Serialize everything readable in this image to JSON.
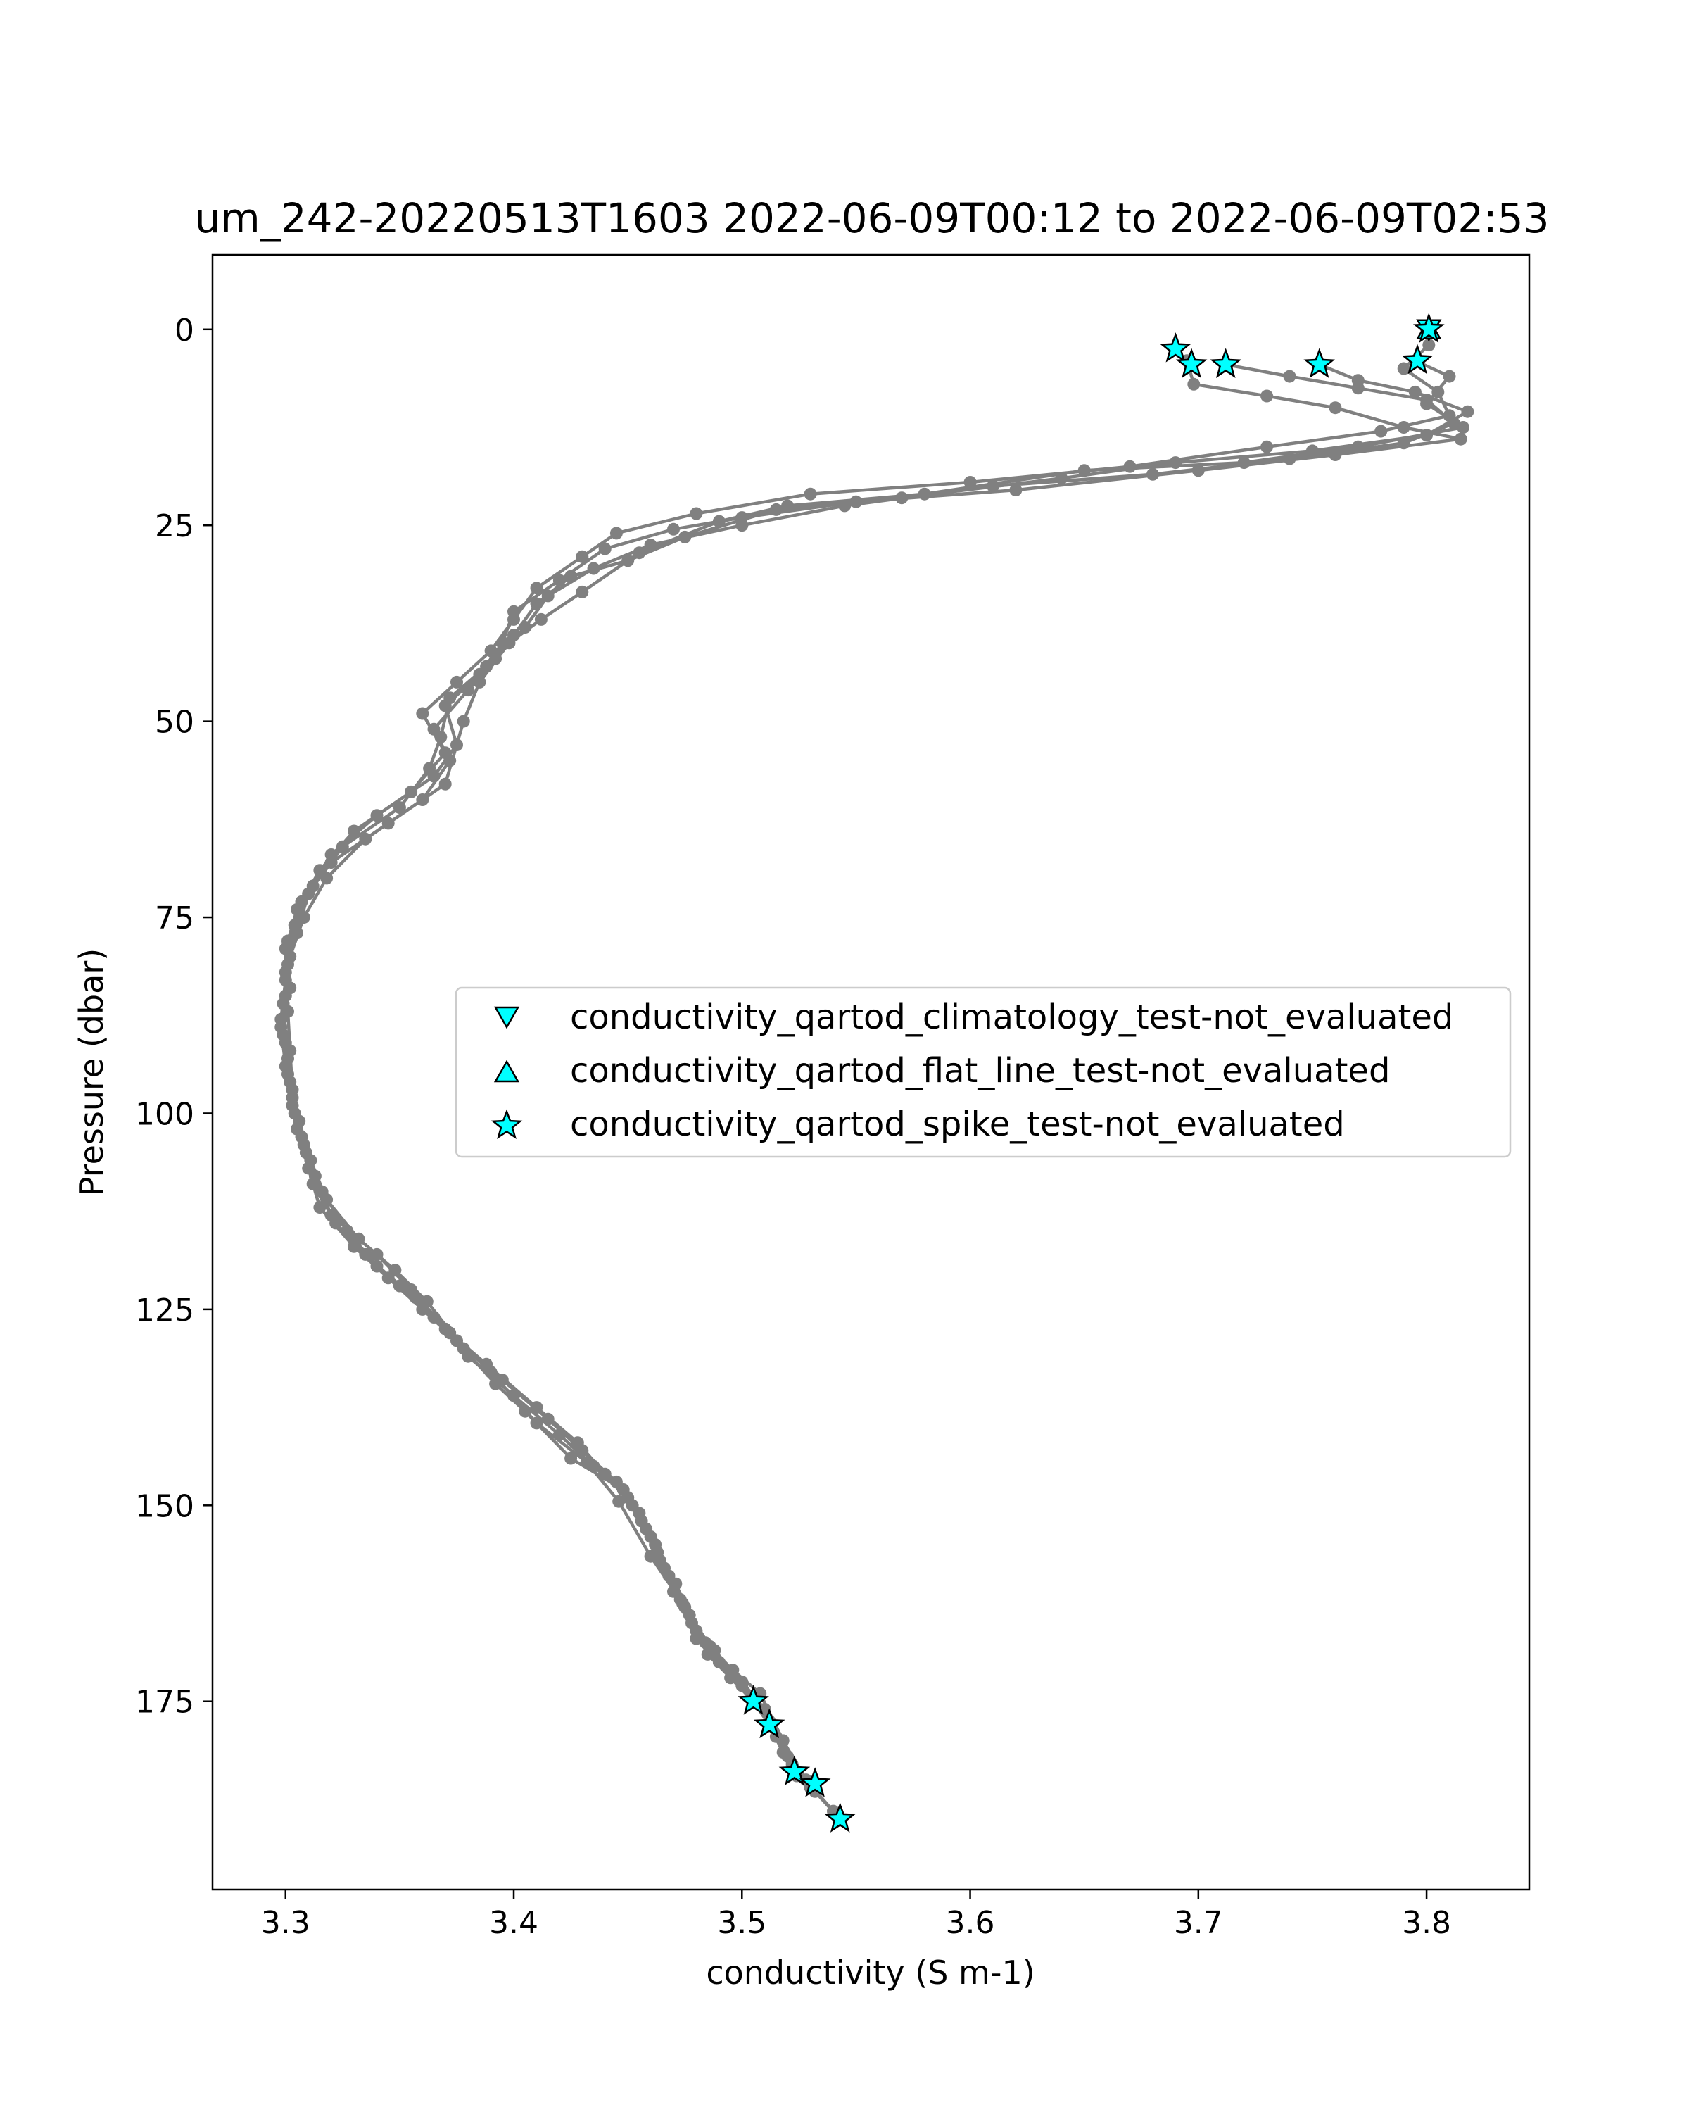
{
  "chart_data": {
    "type": "line",
    "title": "um_242-20220513T1603 2022-06-09T00:12 to 2022-06-09T02:53",
    "xlabel": "conductivity (S m-1)",
    "ylabel": "Pressure (dbar)",
    "xlim": [
      3.268,
      3.845
    ],
    "ylim": [
      199,
      -9.5
    ],
    "y_inverted": true,
    "grid": false,
    "x_ticks": [
      3.3,
      3.4,
      3.5,
      3.6,
      3.7,
      3.8
    ],
    "x_tick_labels": [
      "3.3",
      "3.4",
      "3.5",
      "3.6",
      "3.7",
      "3.8"
    ],
    "y_ticks": [
      0,
      25,
      50,
      75,
      100,
      125,
      150,
      175
    ],
    "y_tick_labels": [
      "0",
      "25",
      "50",
      "75",
      "100",
      "125",
      "150",
      "175"
    ],
    "colors": {
      "profile_line": "#808080",
      "profile_marker": "#808080",
      "flag_fill": "#00ffff",
      "flag_edge": "#000000",
      "axes": "#000000",
      "legend_border": "#cccccc"
    },
    "legend": {
      "placement": "center-right",
      "entries": [
        {
          "marker": "triangle-down",
          "label": "conductivity_qartod_climatology_test-not_evaluated"
        },
        {
          "marker": "triangle-up",
          "label": "conductivity_qartod_flat_line_test-not_evaluated"
        },
        {
          "marker": "star",
          "label": "conductivity_qartod_spike_test-not_evaluated"
        }
      ]
    },
    "series": [
      {
        "values": [
          [
            3.69,
            2.5
          ],
          [
            3.695,
            4.0
          ],
          [
            3.698,
            7.0
          ],
          [
            3.73,
            8.5
          ],
          [
            3.76,
            10.0
          ],
          [
            3.79,
            12.5
          ],
          [
            3.815,
            14.0
          ],
          [
            3.76,
            16.0
          ],
          [
            3.7,
            18.0
          ],
          [
            3.62,
            20.5
          ],
          [
            3.55,
            22.0
          ],
          [
            3.5,
            24.0
          ],
          [
            3.47,
            25.5
          ],
          [
            3.44,
            28.0
          ],
          [
            3.42,
            32.0
          ],
          [
            3.4,
            36.0
          ],
          [
            3.395,
            40.0
          ],
          [
            3.385,
            44.0
          ],
          [
            3.37,
            48.0
          ],
          [
            3.375,
            53.0
          ],
          [
            3.365,
            57.0
          ],
          [
            3.34,
            62.0
          ],
          [
            3.32,
            67.0
          ],
          [
            3.31,
            72.0
          ],
          [
            3.305,
            77.0
          ],
          [
            3.3,
            82.0
          ],
          [
            3.301,
            87.0
          ],
          [
            3.302,
            92.0
          ],
          [
            3.303,
            97.0
          ],
          [
            3.305,
            102.0
          ],
          [
            3.31,
            107.0
          ],
          [
            3.315,
            112.0
          ],
          [
            3.33,
            117.0
          ],
          [
            3.345,
            121.0
          ],
          [
            3.36,
            125.0
          ],
          [
            3.375,
            129.0
          ],
          [
            3.395,
            134.0
          ],
          [
            3.415,
            139.0
          ],
          [
            3.43,
            143.0
          ],
          [
            3.445,
            147.0
          ],
          [
            3.455,
            151.0
          ],
          [
            3.462,
            155.0
          ],
          [
            3.468,
            159.0
          ],
          [
            3.475,
            163.0
          ],
          [
            3.48,
            167.0
          ],
          [
            3.49,
            170.0
          ],
          [
            3.505,
            175.0
          ],
          [
            3.512,
            178.0
          ],
          [
            3.518,
            181.5
          ],
          [
            3.523,
            184.0
          ],
          [
            3.532,
            186.5
          ],
          [
            3.543,
            190.0
          ]
        ]
      },
      {
        "values": [
          [
            3.8,
            0.0
          ],
          [
            3.801,
            2.0
          ],
          [
            3.79,
            5.0
          ],
          [
            3.805,
            8.0
          ],
          [
            3.81,
            11.0
          ],
          [
            3.78,
            13.0
          ],
          [
            3.73,
            15.0
          ],
          [
            3.67,
            17.5
          ],
          [
            3.6,
            19.5
          ],
          [
            3.53,
            21.0
          ],
          [
            3.48,
            23.5
          ],
          [
            3.445,
            26.0
          ],
          [
            3.43,
            29.0
          ],
          [
            3.41,
            33.0
          ],
          [
            3.4,
            37.0
          ],
          [
            3.39,
            41.0
          ],
          [
            3.375,
            45.0
          ],
          [
            3.36,
            49.0
          ],
          [
            3.37,
            54.0
          ],
          [
            3.355,
            59.0
          ],
          [
            3.33,
            64.0
          ],
          [
            3.315,
            69.0
          ],
          [
            3.305,
            74.0
          ],
          [
            3.3,
            79.0
          ],
          [
            3.302,
            84.0
          ],
          [
            3.298,
            89.0
          ],
          [
            3.3,
            94.0
          ],
          [
            3.303,
            99.0
          ],
          [
            3.308,
            104.0
          ],
          [
            3.312,
            109.0
          ],
          [
            3.322,
            114.0
          ],
          [
            3.335,
            118.0
          ],
          [
            3.35,
            122.0
          ],
          [
            3.365,
            126.0
          ],
          [
            3.38,
            131.0
          ],
          [
            3.4,
            136.0
          ],
          [
            3.42,
            141.0
          ],
          [
            3.435,
            145.0
          ],
          [
            3.45,
            149.0
          ],
          [
            3.458,
            153.0
          ],
          [
            3.464,
            157.0
          ],
          [
            3.47,
            161.0
          ],
          [
            3.478,
            165.0
          ],
          [
            3.485,
            169.0
          ],
          [
            3.495,
            172.0
          ],
          [
            3.505,
            175.0
          ],
          [
            3.512,
            178.0
          ],
          [
            3.52,
            182.0
          ],
          [
            3.524,
            184.0
          ],
          [
            3.53,
            186.0
          ]
        ]
      },
      {
        "values": [
          [
            3.712,
            4.5
          ],
          [
            3.74,
            6.0
          ],
          [
            3.77,
            7.5
          ],
          [
            3.8,
            9.0
          ],
          [
            3.812,
            12.0
          ],
          [
            3.79,
            14.5
          ],
          [
            3.74,
            16.5
          ],
          [
            3.68,
            18.5
          ],
          [
            3.61,
            20.0
          ],
          [
            3.545,
            22.5
          ],
          [
            3.5,
            25.0
          ],
          [
            3.46,
            27.5
          ],
          [
            3.435,
            30.5
          ],
          [
            3.415,
            34.0
          ],
          [
            3.405,
            38.0
          ],
          [
            3.392,
            42.0
          ],
          [
            3.38,
            46.0
          ],
          [
            3.365,
            51.0
          ],
          [
            3.372,
            55.0
          ],
          [
            3.36,
            60.0
          ],
          [
            3.335,
            65.0
          ],
          [
            3.318,
            70.0
          ],
          [
            3.308,
            75.0
          ],
          [
            3.302,
            80.0
          ],
          [
            3.3,
            85.0
          ],
          [
            3.299,
            90.0
          ],
          [
            3.301,
            95.0
          ],
          [
            3.304,
            100.0
          ],
          [
            3.309,
            105.0
          ],
          [
            3.316,
            110.0
          ],
          [
            3.327,
            115.0
          ],
          [
            3.34,
            119.5
          ],
          [
            3.357,
            123.5
          ],
          [
            3.37,
            127.5
          ],
          [
            3.388,
            132.0
          ],
          [
            3.41,
            137.5
          ],
          [
            3.428,
            142.0
          ],
          [
            3.44,
            146.0
          ],
          [
            3.452,
            150.0
          ],
          [
            3.46,
            154.0
          ],
          [
            3.466,
            158.0
          ],
          [
            3.473,
            162.0
          ],
          [
            3.48,
            166.0
          ],
          [
            3.488,
            168.5
          ],
          [
            3.5,
            172.5
          ],
          [
            3.51,
            176.0
          ],
          [
            3.515,
            179.5
          ],
          [
            3.522,
            183.0
          ]
        ]
      },
      {
        "values": [
          [
            3.753,
            4.5
          ],
          [
            3.77,
            6.5
          ],
          [
            3.795,
            8.0
          ],
          [
            3.818,
            10.5
          ],
          [
            3.8,
            13.5
          ],
          [
            3.75,
            15.5
          ],
          [
            3.69,
            17.0
          ],
          [
            3.64,
            19.0
          ],
          [
            3.57,
            21.5
          ],
          [
            3.515,
            23.0
          ],
          [
            3.475,
            26.5
          ],
          [
            3.45,
            29.5
          ],
          [
            3.425,
            31.5
          ],
          [
            3.41,
            35.0
          ],
          [
            3.4,
            39.0
          ],
          [
            3.388,
            43.0
          ],
          [
            3.372,
            47.0
          ],
          [
            3.368,
            52.0
          ],
          [
            3.363,
            56.0
          ],
          [
            3.35,
            61.0
          ],
          [
            3.325,
            66.0
          ],
          [
            3.312,
            71.0
          ],
          [
            3.304,
            76.0
          ],
          [
            3.301,
            81.0
          ],
          [
            3.299,
            86.0
          ],
          [
            3.3,
            91.0
          ],
          [
            3.302,
            96.0
          ],
          [
            3.306,
            101.0
          ],
          [
            3.311,
            106.0
          ],
          [
            3.318,
            111.0
          ],
          [
            3.332,
            116.0
          ],
          [
            3.348,
            120.0
          ],
          [
            3.362,
            124.0
          ],
          [
            3.378,
            130.0
          ],
          [
            3.392,
            134.5
          ],
          [
            3.405,
            138.0
          ],
          [
            3.425,
            144.0
          ],
          [
            3.448,
            148.0
          ],
          [
            3.456,
            152.0
          ],
          [
            3.463,
            156.0
          ],
          [
            3.471,
            160.0
          ],
          [
            3.477,
            164.0
          ],
          [
            3.484,
            167.5
          ],
          [
            3.496,
            171.0
          ],
          [
            3.508,
            174.0
          ],
          [
            3.518,
            180.0
          ],
          [
            3.528,
            185.0
          ],
          [
            3.54,
            189.0
          ]
        ]
      },
      {
        "values": [
          [
            3.795,
            4.0
          ],
          [
            3.81,
            6.0
          ],
          [
            3.8,
            9.5
          ],
          [
            3.816,
            12.5
          ],
          [
            3.77,
            15.0
          ],
          [
            3.72,
            17.0
          ],
          [
            3.65,
            18.0
          ],
          [
            3.58,
            21.0
          ],
          [
            3.52,
            22.5
          ],
          [
            3.49,
            24.5
          ],
          [
            3.455,
            28.5
          ],
          [
            3.43,
            33.5
          ],
          [
            3.412,
            37.0
          ],
          [
            3.398,
            40.0
          ],
          [
            3.385,
            45.0
          ],
          [
            3.378,
            50.0
          ],
          [
            3.37,
            58.0
          ],
          [
            3.345,
            63.0
          ],
          [
            3.32,
            68.0
          ],
          [
            3.307,
            73.0
          ],
          [
            3.301,
            78.0
          ],
          [
            3.3,
            83.0
          ],
          [
            3.298,
            88.0
          ],
          [
            3.301,
            93.0
          ],
          [
            3.303,
            98.0
          ],
          [
            3.307,
            103.0
          ],
          [
            3.313,
            108.0
          ],
          [
            3.32,
            113.0
          ],
          [
            3.34,
            118.0
          ],
          [
            3.355,
            122.5
          ],
          [
            3.372,
            128.0
          ],
          [
            3.39,
            133.0
          ],
          [
            3.41,
            139.5
          ],
          [
            3.432,
            144.5
          ],
          [
            3.446,
            149.5
          ],
          [
            3.46,
            156.5
          ],
          [
            3.474,
            162.5
          ],
          [
            3.486,
            168.0
          ],
          [
            3.5,
            173.0
          ],
          [
            3.512,
            177.5
          ],
          [
            3.524,
            184.5
          ]
        ]
      }
    ],
    "flagged_points": {
      "climatology": [
        [
          3.801,
          0.0
        ]
      ],
      "flat_line": [
        [
          3.801,
          0.0
        ]
      ],
      "spike": [
        [
          3.801,
          0.0
        ],
        [
          3.69,
          2.5
        ],
        [
          3.697,
          4.5
        ],
        [
          3.712,
          4.5
        ],
        [
          3.753,
          4.5
        ],
        [
          3.796,
          4.0
        ],
        [
          3.505,
          175.0
        ],
        [
          3.512,
          178.0
        ],
        [
          3.523,
          184.0
        ],
        [
          3.532,
          185.5
        ],
        [
          3.543,
          190.0
        ]
      ]
    }
  }
}
